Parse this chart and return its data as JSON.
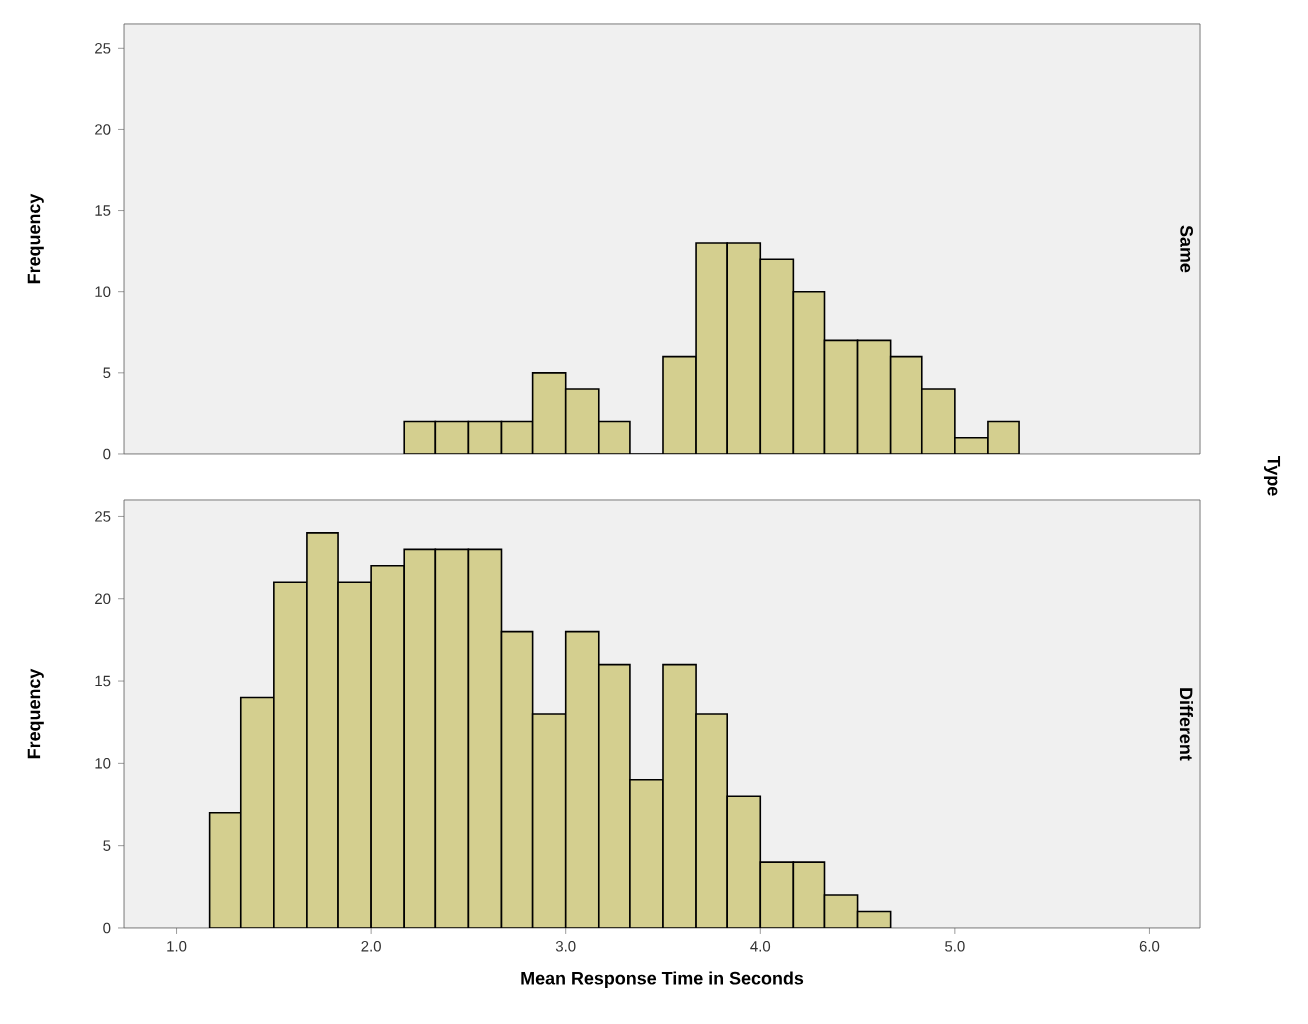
{
  "chart_data": [
    {
      "type": "histogram",
      "ylabel": "Frequency",
      "y2label": "Same",
      "annotations": [
        "Type"
      ],
      "bins": [
        2.17,
        2.33,
        2.5,
        2.67,
        2.83,
        3,
        3.17,
        3.33,
        3.5,
        3.67,
        3.83,
        4,
        4.17,
        4.33,
        4.5,
        4.67,
        4.83,
        5,
        5.17,
        5.33
      ],
      "values": [
        2,
        2,
        2,
        2,
        5,
        4,
        2,
        0,
        6,
        13,
        13,
        12,
        10,
        7,
        7,
        6,
        4,
        1,
        2
      ],
      "colors": [
        "#d4cf8f",
        "#d4cf8f",
        "#d4cf8f",
        "#d4cf8f",
        "#d4cf8f",
        "#d4cf8f",
        "#d4cf8f",
        "#000000",
        "#d4cf8f",
        "#d4cf8f",
        "#d4cf8f",
        "#d4cf8f",
        "#d4cf8f",
        "#d4cf8f",
        "#d4cf8f",
        "#d4cf8f",
        "#d4cf8f",
        "#d4cf8f",
        "#d4cf8f"
      ],
      "xlim": [
        0.73,
        6.26
      ],
      "ylim": [
        0,
        26.5
      ],
      "yticks": [
        0,
        5,
        10,
        15,
        20,
        25
      ],
      "tick_labels": "y"
    },
    {
      "type": "histogram",
      "ylabel": "Frequency",
      "y2label": "Different",
      "xlabel": "Mean Response Time in Seconds",
      "bins": [
        1.17,
        1.33,
        1.5,
        1.67,
        1.83,
        2,
        2.17,
        2.33,
        2.5,
        2.67,
        2.83,
        3,
        3.17,
        3.33,
        3.5,
        3.67,
        3.83,
        4,
        4.17,
        4.33,
        4.5,
        4.67
      ],
      "values": [
        7,
        14,
        21,
        24,
        21,
        22,
        23,
        23,
        23,
        18,
        13,
        18,
        16,
        9,
        16,
        13,
        8,
        4,
        4,
        2,
        1
      ],
      "color": "#d4cf8f",
      "xlim": [
        0.73,
        6.26
      ],
      "ylim": [
        0,
        26
      ],
      "xticks": [
        {
          "value": 1,
          "label": "1.0"
        },
        {
          "value": 2,
          "label": "2.0"
        },
        {
          "value": 3,
          "label": "3.0"
        },
        {
          "value": 4,
          "label": "4.0"
        },
        {
          "value": 5,
          "label": "5.0"
        },
        {
          "value": 6,
          "label": "6.0"
        }
      ],
      "yticks": [
        0,
        5,
        10,
        15,
        20,
        25
      ]
    }
  ]
}
